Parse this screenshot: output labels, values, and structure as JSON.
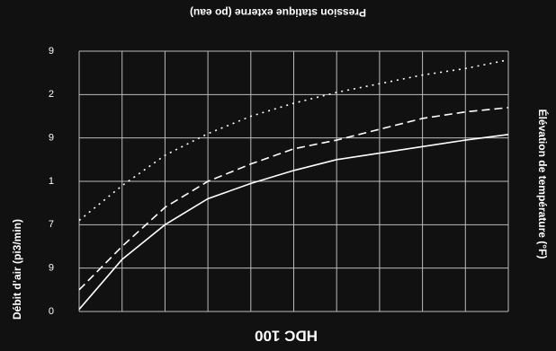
{
  "chart_data": {
    "type": "line",
    "title": "HDC 100",
    "subtitle": "Pression statique externe (po eau)",
    "y_label": "Débit d’air (pi3/min)",
    "y2_label": "Élévation de température (°F)",
    "x": [
      0,
      1,
      2,
      3,
      4,
      5,
      6,
      7,
      8,
      9,
      10
    ],
    "series": [
      {
        "color": "#ffffff",
        "dash": "solid",
        "values": [
          0.05,
          1.2,
          2.0,
          2.6,
          2.95,
          3.25,
          3.5,
          3.65,
          3.8,
          3.95,
          4.08
        ]
      },
      {
        "color": "#ffffff",
        "dash": "dashed",
        "values": [
          0.5,
          1.5,
          2.4,
          3.0,
          3.4,
          3.75,
          3.95,
          4.2,
          4.45,
          4.6,
          4.7
        ]
      },
      {
        "color": "#ffffff",
        "dash": "dotted",
        "values": [
          2.1,
          2.9,
          3.6,
          4.1,
          4.5,
          4.8,
          5.05,
          5.25,
          5.45,
          5.6,
          5.8
        ]
      }
    ],
    "xlim": [
      0,
      10
    ],
    "xticks": [
      0,
      1,
      2,
      3,
      4,
      5,
      6,
      7,
      8,
      9,
      10
    ],
    "ylim": [
      0,
      6
    ],
    "yticks": [
      {
        "value": 0,
        "label": "0"
      },
      {
        "value": 1,
        "label": "9"
      },
      {
        "value": 2,
        "label": "7"
      },
      {
        "value": 3,
        "label": "1"
      },
      {
        "value": 4,
        "label": "9"
      },
      {
        "value": 5,
        "label": "2"
      },
      {
        "value": 6,
        "label": "9"
      }
    ],
    "grid": true
  }
}
